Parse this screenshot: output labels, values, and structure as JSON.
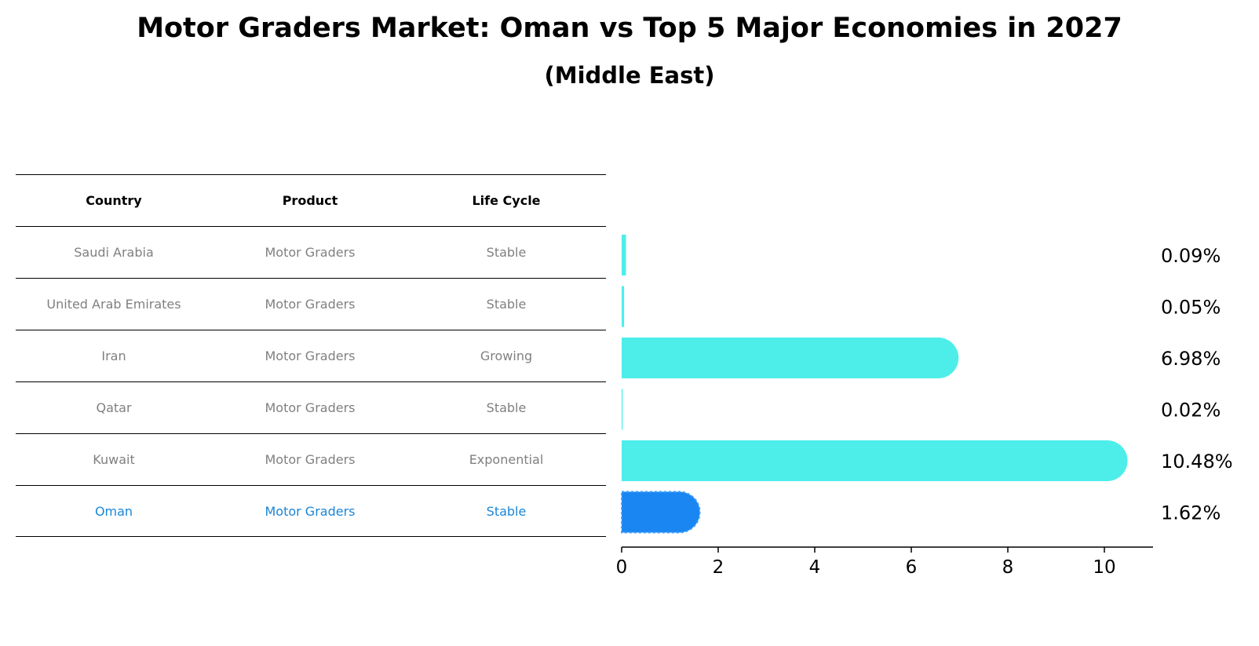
{
  "title": "Motor Graders Market: Oman vs Top 5 Major Economies in 2027",
  "subtitle": "(Middle East)",
  "table": {
    "headers": [
      "Country",
      "Product",
      "Life Cycle"
    ],
    "rows": [
      [
        "Saudi Arabia",
        "Motor Graders",
        "Stable"
      ],
      [
        "United Arab Emirates",
        "Motor Graders",
        "Stable"
      ],
      [
        "Iran",
        "Motor Graders",
        "Growing"
      ],
      [
        "Qatar",
        "Motor Graders",
        "Stable"
      ],
      [
        "Kuwait",
        "Motor Graders",
        "Exponential"
      ],
      [
        "Oman",
        "Motor Graders",
        "Stable"
      ]
    ],
    "highlight_row": "Oman"
  },
  "colors": {
    "bar": "#4deeea",
    "highlight_bar": "#1a86f2",
    "highlight_text": "#1a86d6",
    "muted_text": "#808080"
  },
  "chart_data": {
    "type": "bar",
    "orientation": "horizontal",
    "categories": [
      "Saudi Arabia",
      "United Arab Emirates",
      "Iran",
      "Qatar",
      "Kuwait",
      "Oman"
    ],
    "values": [
      0.09,
      0.05,
      6.98,
      0.02,
      10.48,
      1.62
    ],
    "value_labels": [
      "0.09%",
      "0.05%",
      "6.98%",
      "0.02%",
      "10.48%",
      "1.62%"
    ],
    "highlight": "Oman",
    "xlim": [
      0,
      11
    ],
    "xticks": [
      0,
      2,
      4,
      6,
      8,
      10
    ],
    "xlabel": "",
    "ylabel": "",
    "grid": false
  }
}
